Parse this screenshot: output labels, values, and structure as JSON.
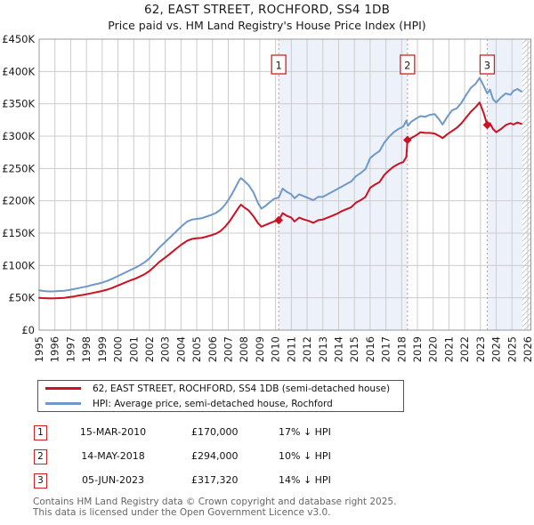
{
  "title": {
    "line1": "62, EAST STREET, ROCHFORD, SS4 1DB",
    "line2": "Price paid vs. HM Land Registry's House Price Index (HPI)"
  },
  "chart_data": {
    "type": "line",
    "title": "62, EAST STREET, ROCHFORD, SS4 1DB",
    "subtitle": "Price paid vs. HM Land Registry's House Price Index (HPI)",
    "x_range": [
      1995,
      2026.2
    ],
    "y_range": [
      0,
      450
    ],
    "y_unit": "GBP thousands",
    "grid": true,
    "y_ticks": [
      {
        "v": 0,
        "label": "£0"
      },
      {
        "v": 50,
        "label": "£50K"
      },
      {
        "v": 100,
        "label": "£100K"
      },
      {
        "v": 150,
        "label": "£150K"
      },
      {
        "v": 200,
        "label": "£200K"
      },
      {
        "v": 250,
        "label": "£250K"
      },
      {
        "v": 300,
        "label": "£300K"
      },
      {
        "v": 350,
        "label": "£350K"
      },
      {
        "v": 400,
        "label": "£400K"
      },
      {
        "v": 450,
        "label": "£450K"
      }
    ],
    "x_ticks": [
      1995,
      1996,
      1997,
      1998,
      1999,
      2000,
      2001,
      2002,
      2003,
      2004,
      2005,
      2006,
      2007,
      2008,
      2009,
      2010,
      2011,
      2012,
      2013,
      2014,
      2015,
      2016,
      2017,
      2018,
      2019,
      2020,
      2021,
      2022,
      2023,
      2024,
      2025,
      2026
    ],
    "band_color": "#edf2fa",
    "grid_color": "#cccccc",
    "border_color": "#999999",
    "dash_color": "#f38080",
    "marker_box_color": "#cc2222",
    "hatch_color": "#c4c8cc",
    "bands": [
      {
        "from": 2010.2,
        "to": 2018.37
      },
      {
        "from": 2023.43,
        "to": 2025.65
      }
    ],
    "hatch_from": 2025.65,
    "series": [
      {
        "name": "62, EAST STREET, ROCHFORD, SS4 1DB (semi-detached house)",
        "color": "#cc1122",
        "points": [
          [
            1995.0,
            50
          ],
          [
            1995.25,
            49.6
          ],
          [
            1995.5,
            49.2
          ],
          [
            1995.75,
            49
          ],
          [
            1996.0,
            49.2
          ],
          [
            1996.3,
            49.6
          ],
          [
            1996.6,
            50
          ],
          [
            1996.9,
            51
          ],
          [
            1997.2,
            52
          ],
          [
            1997.5,
            53.5
          ],
          [
            1997.8,
            54.5
          ],
          [
            1998.1,
            56
          ],
          [
            1998.4,
            57.5
          ],
          [
            1998.7,
            59
          ],
          [
            1999.0,
            60.5
          ],
          [
            1999.3,
            62.5
          ],
          [
            1999.6,
            65
          ],
          [
            1999.9,
            68
          ],
          [
            2000.2,
            71
          ],
          [
            2000.5,
            74
          ],
          [
            2000.8,
            77
          ],
          [
            2001.1,
            79.5
          ],
          [
            2001.4,
            83
          ],
          [
            2001.7,
            86.5
          ],
          [
            2002.0,
            91.5
          ],
          [
            2002.3,
            98
          ],
          [
            2002.6,
            105
          ],
          [
            2002.9,
            110.5
          ],
          [
            2003.2,
            116
          ],
          [
            2003.5,
            122
          ],
          [
            2003.8,
            128
          ],
          [
            2004.1,
            133.5
          ],
          [
            2004.4,
            138.5
          ],
          [
            2004.7,
            141
          ],
          [
            2005.0,
            142
          ],
          [
            2005.3,
            142.5
          ],
          [
            2005.6,
            144.5
          ],
          [
            2005.9,
            146.5
          ],
          [
            2006.2,
            149
          ],
          [
            2006.5,
            153
          ],
          [
            2006.8,
            160
          ],
          [
            2007.1,
            169
          ],
          [
            2007.4,
            180
          ],
          [
            2007.7,
            191
          ],
          [
            2007.8,
            194
          ],
          [
            2008.0,
            190
          ],
          [
            2008.3,
            185
          ],
          [
            2008.6,
            176
          ],
          [
            2008.9,
            165
          ],
          [
            2009.1,
            160
          ],
          [
            2009.3,
            162
          ],
          [
            2009.6,
            165
          ],
          [
            2009.9,
            168
          ],
          [
            2010.2,
            170
          ],
          [
            2010.45,
            181
          ],
          [
            2010.7,
            177
          ],
          [
            2011.0,
            174
          ],
          [
            2011.2,
            168
          ],
          [
            2011.5,
            174
          ],
          [
            2011.8,
            171
          ],
          [
            2012.1,
            169
          ],
          [
            2012.4,
            166
          ],
          [
            2012.7,
            170
          ],
          [
            2013.0,
            171
          ],
          [
            2013.3,
            174
          ],
          [
            2013.6,
            177
          ],
          [
            2013.9,
            180
          ],
          [
            2014.2,
            184
          ],
          [
            2014.5,
            187
          ],
          [
            2014.8,
            190
          ],
          [
            2015.1,
            197
          ],
          [
            2015.4,
            201
          ],
          [
            2015.7,
            206
          ],
          [
            2016.0,
            220
          ],
          [
            2016.3,
            225
          ],
          [
            2016.6,
            229
          ],
          [
            2016.9,
            240
          ],
          [
            2017.2,
            247
          ],
          [
            2017.5,
            253
          ],
          [
            2017.8,
            257
          ],
          [
            2018.1,
            260
          ],
          [
            2018.3,
            268
          ],
          [
            2018.37,
            294
          ],
          [
            2018.6,
            297
          ],
          [
            2018.9,
            301
          ],
          [
            2019.2,
            306
          ],
          [
            2019.5,
            305
          ],
          [
            2019.8,
            305
          ],
          [
            2020.1,
            304
          ],
          [
            2020.4,
            300
          ],
          [
            2020.6,
            297
          ],
          [
            2020.9,
            303
          ],
          [
            2021.2,
            308
          ],
          [
            2021.5,
            313
          ],
          [
            2021.8,
            320
          ],
          [
            2022.1,
            329
          ],
          [
            2022.4,
            338
          ],
          [
            2022.7,
            345
          ],
          [
            2022.95,
            352
          ],
          [
            2023.2,
            336
          ],
          [
            2023.43,
            317.3
          ],
          [
            2023.6,
            320
          ],
          [
            2023.8,
            311
          ],
          [
            2024.0,
            306
          ],
          [
            2024.3,
            311
          ],
          [
            2024.6,
            317
          ],
          [
            2024.9,
            320
          ],
          [
            2025.1,
            318
          ],
          [
            2025.35,
            321
          ],
          [
            2025.6,
            319
          ]
        ]
      },
      {
        "name": "HPI: Average price, semi-detached house, Rochford",
        "color": "#6f98ca",
        "points": [
          [
            1995.0,
            61.5
          ],
          [
            1995.25,
            60.5
          ],
          [
            1995.5,
            60
          ],
          [
            1995.75,
            59.8
          ],
          [
            1996.0,
            60
          ],
          [
            1996.3,
            60.5
          ],
          [
            1996.6,
            61
          ],
          [
            1996.9,
            62
          ],
          [
            1997.2,
            63.5
          ],
          [
            1997.5,
            65
          ],
          [
            1997.8,
            66.5
          ],
          [
            1998.1,
            68
          ],
          [
            1998.4,
            70
          ],
          [
            1998.7,
            71.5
          ],
          [
            1999.0,
            73.5
          ],
          [
            1999.3,
            76
          ],
          [
            1999.6,
            79
          ],
          [
            1999.9,
            82.5
          ],
          [
            2000.2,
            86
          ],
          [
            2000.5,
            89.5
          ],
          [
            2000.8,
            93
          ],
          [
            2001.1,
            96.5
          ],
          [
            2001.4,
            100.5
          ],
          [
            2001.7,
            105
          ],
          [
            2002.0,
            111
          ],
          [
            2002.3,
            119
          ],
          [
            2002.6,
            127
          ],
          [
            2002.9,
            134
          ],
          [
            2003.2,
            141
          ],
          [
            2003.5,
            148
          ],
          [
            2003.8,
            155
          ],
          [
            2004.1,
            162
          ],
          [
            2004.4,
            168
          ],
          [
            2004.7,
            171
          ],
          [
            2005.0,
            172
          ],
          [
            2005.3,
            173
          ],
          [
            2005.6,
            175.5
          ],
          [
            2005.9,
            178
          ],
          [
            2006.2,
            181
          ],
          [
            2006.5,
            186
          ],
          [
            2006.8,
            194
          ],
          [
            2007.1,
            205
          ],
          [
            2007.4,
            218
          ],
          [
            2007.7,
            232
          ],
          [
            2007.8,
            235
          ],
          [
            2008.0,
            231
          ],
          [
            2008.3,
            224
          ],
          [
            2008.6,
            213
          ],
          [
            2008.9,
            196
          ],
          [
            2009.1,
            188
          ],
          [
            2009.3,
            191
          ],
          [
            2009.6,
            197
          ],
          [
            2009.9,
            203
          ],
          [
            2010.2,
            205
          ],
          [
            2010.45,
            219
          ],
          [
            2010.7,
            214
          ],
          [
            2011.0,
            210
          ],
          [
            2011.2,
            204
          ],
          [
            2011.5,
            210
          ],
          [
            2011.8,
            207
          ],
          [
            2012.1,
            204
          ],
          [
            2012.4,
            201
          ],
          [
            2012.7,
            206
          ],
          [
            2013.0,
            206
          ],
          [
            2013.3,
            210
          ],
          [
            2013.6,
            214
          ],
          [
            2013.9,
            218
          ],
          [
            2014.2,
            222
          ],
          [
            2014.5,
            226
          ],
          [
            2014.8,
            230
          ],
          [
            2015.1,
            238
          ],
          [
            2015.4,
            243
          ],
          [
            2015.7,
            249
          ],
          [
            2016.0,
            266
          ],
          [
            2016.3,
            272
          ],
          [
            2016.6,
            277
          ],
          [
            2016.9,
            290
          ],
          [
            2017.2,
            299
          ],
          [
            2017.5,
            306
          ],
          [
            2017.8,
            311
          ],
          [
            2018.1,
            315
          ],
          [
            2018.3,
            324
          ],
          [
            2018.4,
            316
          ],
          [
            2018.6,
            322
          ],
          [
            2018.9,
            327
          ],
          [
            2019.2,
            331
          ],
          [
            2019.5,
            330
          ],
          [
            2019.8,
            333
          ],
          [
            2020.1,
            334
          ],
          [
            2020.4,
            325
          ],
          [
            2020.6,
            318
          ],
          [
            2020.9,
            330
          ],
          [
            2021.2,
            340
          ],
          [
            2021.5,
            343
          ],
          [
            2021.8,
            352
          ],
          [
            2022.1,
            364
          ],
          [
            2022.4,
            375
          ],
          [
            2022.7,
            381
          ],
          [
            2022.95,
            390
          ],
          [
            2023.2,
            378
          ],
          [
            2023.43,
            366
          ],
          [
            2023.6,
            372
          ],
          [
            2023.8,
            357
          ],
          [
            2024.0,
            352
          ],
          [
            2024.3,
            360
          ],
          [
            2024.6,
            366
          ],
          [
            2024.9,
            364
          ],
          [
            2025.1,
            370
          ],
          [
            2025.35,
            373
          ],
          [
            2025.6,
            369
          ]
        ]
      }
    ],
    "sales": [
      {
        "n": "1",
        "year": 2010.2,
        "value": 170,
        "date": "15-MAR-2010",
        "price": "£170,000",
        "vs_hpi": "17% ↓ HPI"
      },
      {
        "n": "2",
        "year": 2018.37,
        "value": 294,
        "date": "14-MAY-2018",
        "price": "£294,000",
        "vs_hpi": "10% ↓ HPI"
      },
      {
        "n": "3",
        "year": 2023.43,
        "value": 317.32,
        "date": "05-JUN-2023",
        "price": "£317,320",
        "vs_hpi": "14% ↓ HPI"
      }
    ],
    "legend_position": "bottom"
  },
  "legend": {
    "items": [
      {
        "label": "62, EAST STREET, ROCHFORD, SS4 1DB (semi-detached house)",
        "color": "#cc1122"
      },
      {
        "label": "HPI: Average price, semi-detached house, Rochford",
        "color": "#6f98ca"
      }
    ]
  },
  "transactions": [
    {
      "num": "1",
      "date": "15-MAR-2010",
      "price": "£170,000",
      "pct": "17% ↓ HPI"
    },
    {
      "num": "2",
      "date": "14-MAY-2018",
      "price": "£294,000",
      "pct": "10% ↓ HPI"
    },
    {
      "num": "3",
      "date": "05-JUN-2023",
      "price": "£317,320",
      "pct": "14% ↓ HPI"
    }
  ],
  "footer": {
    "line1": "Contains HM Land Registry data © Crown copyright and database right 2025.",
    "line2": "This data is licensed under the Open Government Licence v3.0."
  }
}
